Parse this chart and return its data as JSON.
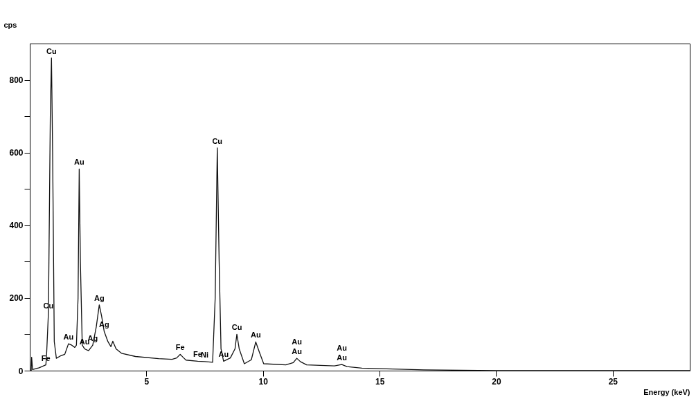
{
  "chart_data": {
    "type": "line",
    "xlabel": "Energy (keV)",
    "ylabel": "cps",
    "x": [
      0.06,
      0.08,
      0.12,
      0.4,
      0.69,
      0.72,
      0.8,
      0.88,
      0.93,
      0.98,
      1.05,
      1.14,
      1.3,
      1.5,
      1.66,
      1.8,
      1.93,
      2.0,
      2.07,
      2.12,
      2.17,
      2.25,
      2.35,
      2.52,
      2.7,
      2.85,
      2.98,
      3.08,
      3.19,
      3.35,
      3.48,
      3.56,
      3.7,
      3.93,
      4.53,
      5.52,
      6.1,
      6.3,
      6.45,
      6.6,
      6.7,
      7.2,
      7.5,
      7.84,
      7.95,
      8.04,
      8.12,
      8.2,
      8.31,
      8.6,
      8.8,
      8.88,
      8.98,
      9.2,
      9.5,
      9.69,
      9.85,
      10.03,
      10.98,
      11.3,
      11.45,
      11.6,
      11.87,
      13.06,
      13.38,
      13.6,
      14.24,
      16.9,
      20.0,
      28.3
    ],
    "series": [
      {
        "color": "#111111",
        "values": [
          0,
          37,
          3,
          8,
          16,
          43,
          160,
          700,
          860,
          600,
          80,
          34,
          40,
          45,
          74,
          70,
          64,
          70,
          200,
          555,
          300,
          70,
          60,
          55,
          70,
          120,
          181,
          150,
          108,
          80,
          66,
          81,
          60,
          48,
          39,
          33,
          31,
          35,
          45,
          35,
          29,
          26,
          25,
          23,
          200,
          613,
          300,
          60,
          26,
          35,
          60,
          100,
          60,
          19,
          30,
          79,
          50,
          19,
          16,
          22,
          34,
          25,
          16,
          13,
          17,
          11,
          7,
          2,
          0,
          0
        ]
      }
    ],
    "xlim": [
      0,
      28.3
    ],
    "ylim": [
      0,
      900
    ],
    "xticks": [
      5,
      10,
      15,
      20,
      25
    ],
    "yticks": [
      0,
      {
        "value": 100,
        "label": null
      },
      200,
      {
        "value": 300,
        "label": null
      },
      400,
      {
        "value": 500,
        "label": null
      },
      600,
      {
        "value": 700,
        "label": null
      },
      800
    ],
    "grid": false,
    "annotations": [
      {
        "text": "Cu",
        "x": 0.93,
        "y": 860
      },
      {
        "text": "Cu",
        "x": 0.8,
        "y": 160
      },
      {
        "text": "Fe",
        "x": 0.69,
        "y": 16
      },
      {
        "text": "Au",
        "x": 1.66,
        "y": 74
      },
      {
        "text": "Au",
        "x": 2.12,
        "y": 555
      },
      {
        "text": "Au",
        "x": 2.35,
        "y": 60
      },
      {
        "text": "Ag",
        "x": 2.7,
        "y": 70
      },
      {
        "text": "Ag",
        "x": 2.98,
        "y": 181
      },
      {
        "text": "Ag",
        "x": 3.19,
        "y": 108
      },
      {
        "text": "Fe",
        "x": 6.45,
        "y": 45
      },
      {
        "text": "Fe",
        "x": 7.2,
        "y": 26
      },
      {
        "text": "Ni",
        "x": 7.5,
        "y": 25
      },
      {
        "text": "Cu",
        "x": 8.04,
        "y": 613
      },
      {
        "text": "Au",
        "x": 8.31,
        "y": 26
      },
      {
        "text": "Cu",
        "x": 8.88,
        "y": 100
      },
      {
        "text": "Au",
        "x": 9.69,
        "y": 79
      },
      {
        "text": "Au",
        "x": 11.45,
        "y": 34
      },
      {
        "text": "Au",
        "x": 11.45,
        "y": 34
      },
      {
        "text": "Au",
        "x": 13.38,
        "y": 17
      },
      {
        "text": "Au",
        "x": 13.38,
        "y": 17
      }
    ]
  }
}
